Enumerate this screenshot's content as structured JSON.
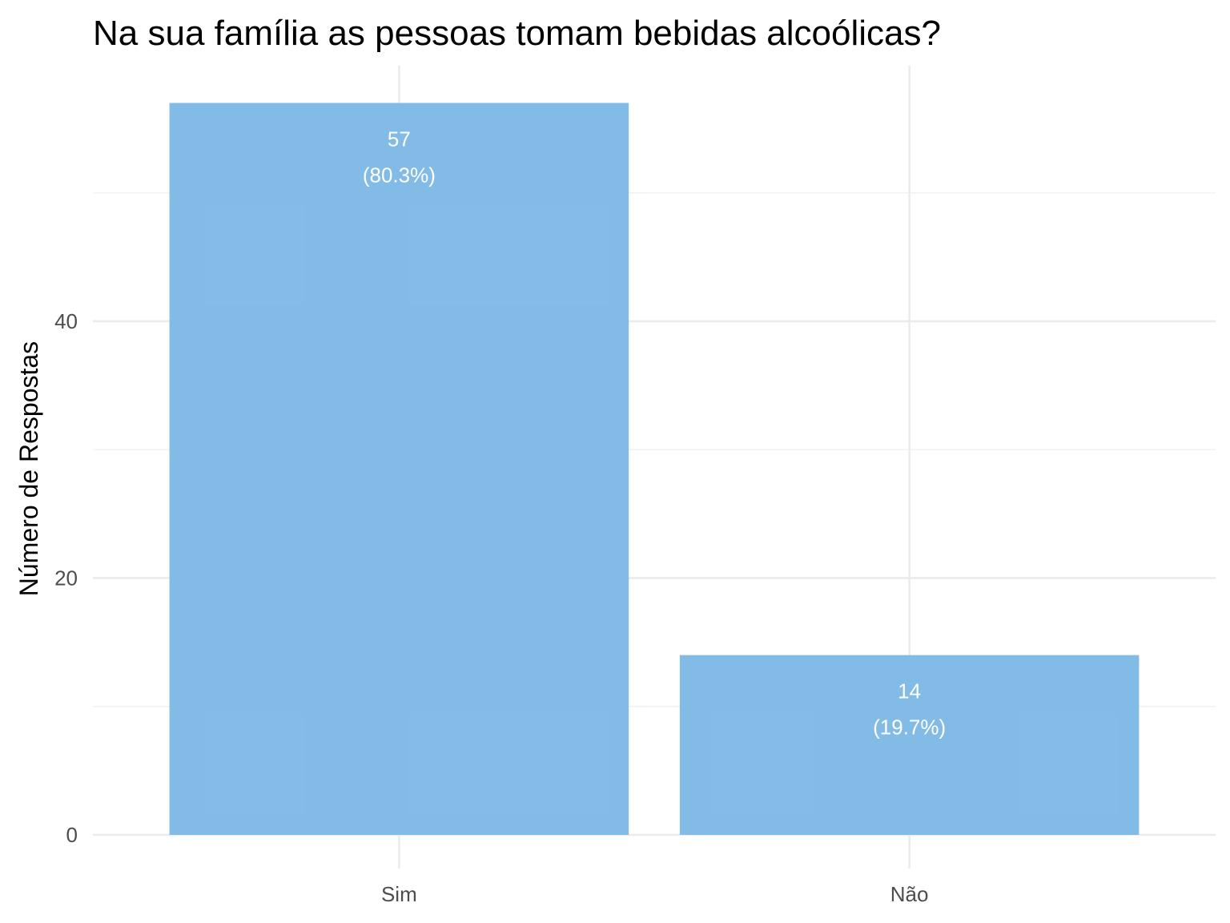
{
  "chart_data": {
    "type": "bar",
    "title": "Na sua família as pessoas tomam bebidas alcoólicas?",
    "xlabel": "",
    "ylabel": "Número de Respostas",
    "categories": [
      "Sim",
      "Não"
    ],
    "values": [
      57,
      14
    ],
    "value_labels": [
      "57",
      "14"
    ],
    "percent_labels": [
      "(80.3%)",
      "(19.7%)"
    ],
    "ylim": [
      0,
      59.9
    ],
    "yticks": [
      0,
      20,
      40
    ],
    "ytick_labels": [
      "0",
      "20",
      "40"
    ],
    "minor_yticks": [
      10,
      30,
      50
    ],
    "grid": true,
    "legend": "none",
    "bar_color": "#7fbbe6"
  }
}
